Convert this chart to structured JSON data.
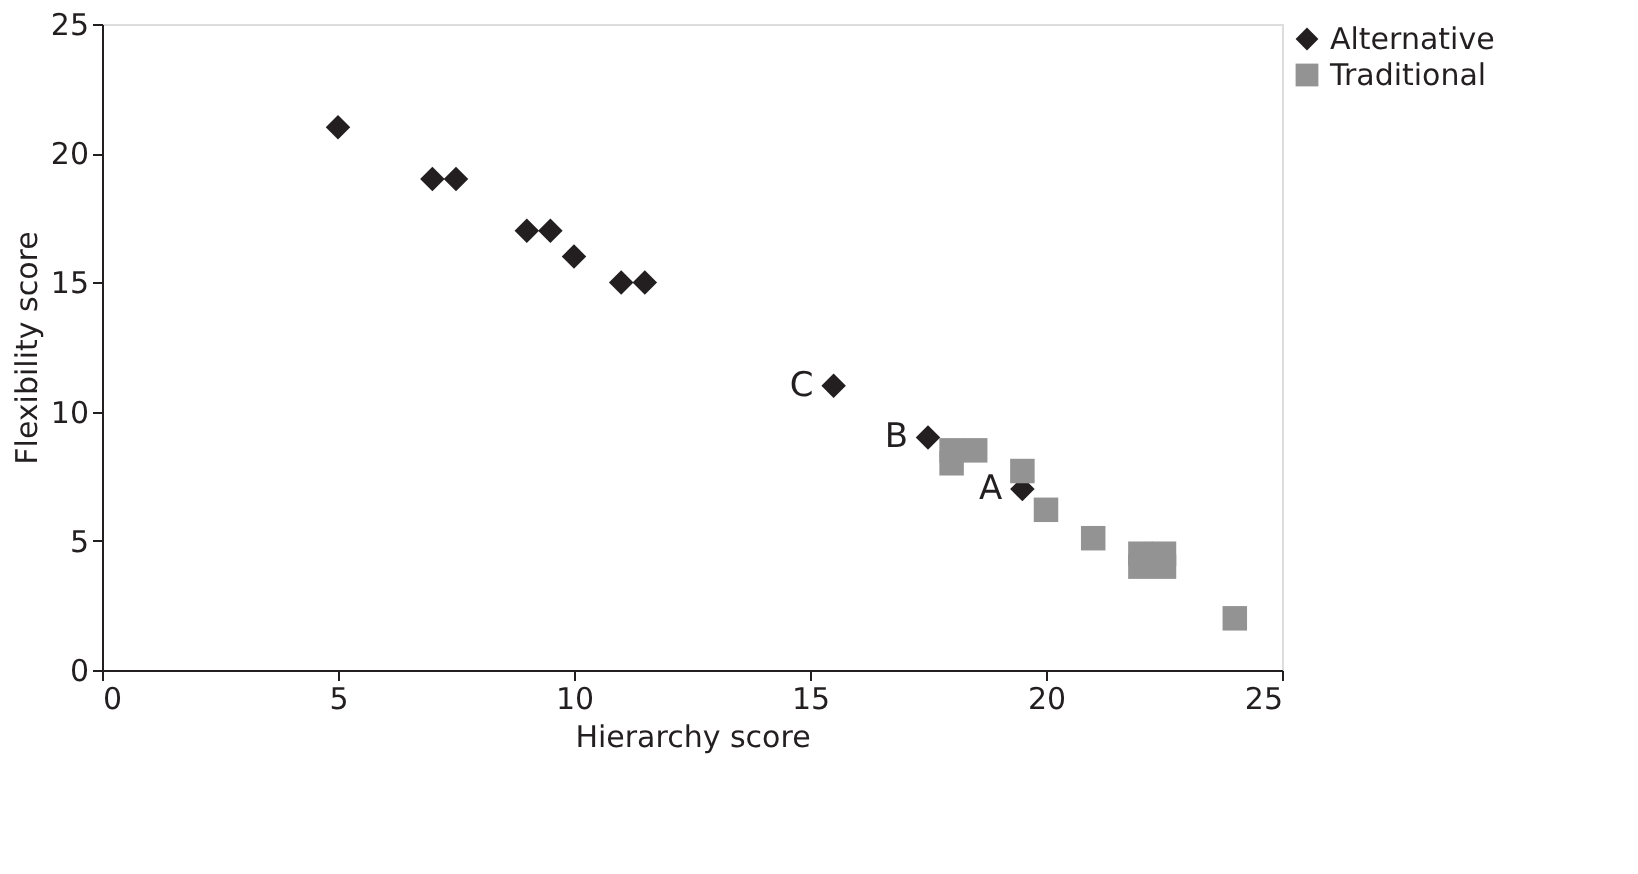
{
  "chart_data": {
    "type": "scatter",
    "xlabel": "Hierarchy score",
    "ylabel": "Flexibility score",
    "xlim": [
      0,
      25
    ],
    "ylim": [
      0,
      25
    ],
    "xticks": [
      0,
      5,
      10,
      15,
      20,
      25
    ],
    "yticks": [
      0,
      5,
      10,
      15,
      20,
      25
    ],
    "grid": false,
    "legend": "top right",
    "series": [
      {
        "name": "Alternative",
        "color": "#231f20",
        "marker": "diamond",
        "x": [
          5,
          7,
          7.5,
          9,
          9.5,
          10,
          11,
          11.5,
          15.5,
          17.5,
          19.5
        ],
        "values": [
          21,
          19,
          19,
          17,
          17,
          16,
          15,
          15,
          11,
          9,
          7
        ]
      },
      {
        "name": "Traditional",
        "color": "#939393",
        "marker": "square",
        "x": [
          18,
          18,
          18.5,
          19.5,
          20,
          21,
          22,
          22,
          22.5,
          22.5,
          24
        ],
        "values": [
          8.5,
          8,
          8.5,
          7.7,
          6.2,
          5.1,
          4.5,
          4,
          4.5,
          4,
          2
        ]
      }
    ],
    "annotations": [
      {
        "text": "A",
        "x": 19.5,
        "y": 7
      },
      {
        "text": "B",
        "x": 17.5,
        "y": 9
      },
      {
        "text": "C",
        "x": 15.5,
        "y": 11
      }
    ]
  }
}
